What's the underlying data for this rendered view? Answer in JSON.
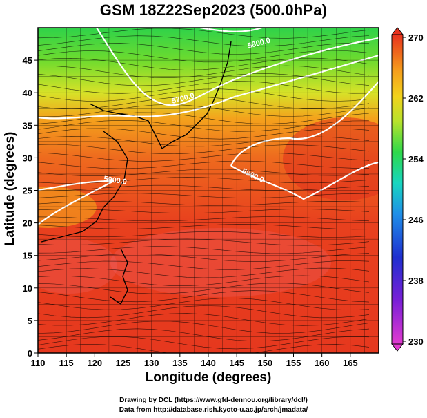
{
  "title": "GSM 18Z22Sep2023 (500.0hPa)",
  "credits": {
    "line1": "Drawing by DCL (https://www.gfd-dennou.org/library/dcl/)",
    "line2": "Data from http://database.rish.kyoto-u.ac.jp/arch/jmadata/"
  },
  "chart_data": {
    "type": "heatmap",
    "title": "GSM 18Z22Sep2023 (500.0hPa)",
    "xlabel": "Longitude (degrees)",
    "ylabel": "Latitude (degrees)",
    "xlim": [
      110,
      170
    ],
    "ylim": [
      0,
      50
    ],
    "x_ticks": [
      110,
      115,
      120,
      125,
      130,
      135,
      140,
      145,
      150,
      155,
      160,
      165
    ],
    "y_ticks": [
      0,
      5,
      10,
      15,
      20,
      25,
      30,
      35,
      40,
      45
    ],
    "grid": true,
    "colorbar": {
      "ticks": [
        230,
        238,
        246,
        254,
        262,
        270
      ],
      "range": [
        230,
        270
      ]
    },
    "contour_labels": [
      "5700.0",
      "5800.0",
      "5900.0",
      "5800.0"
    ],
    "colors": {
      "hot": "#e8321e",
      "warm": "#f26a1e",
      "mid": "#f5a01c",
      "yellow": "#dde32a",
      "green": "#36c93a",
      "pink": "#f06a78"
    }
  }
}
